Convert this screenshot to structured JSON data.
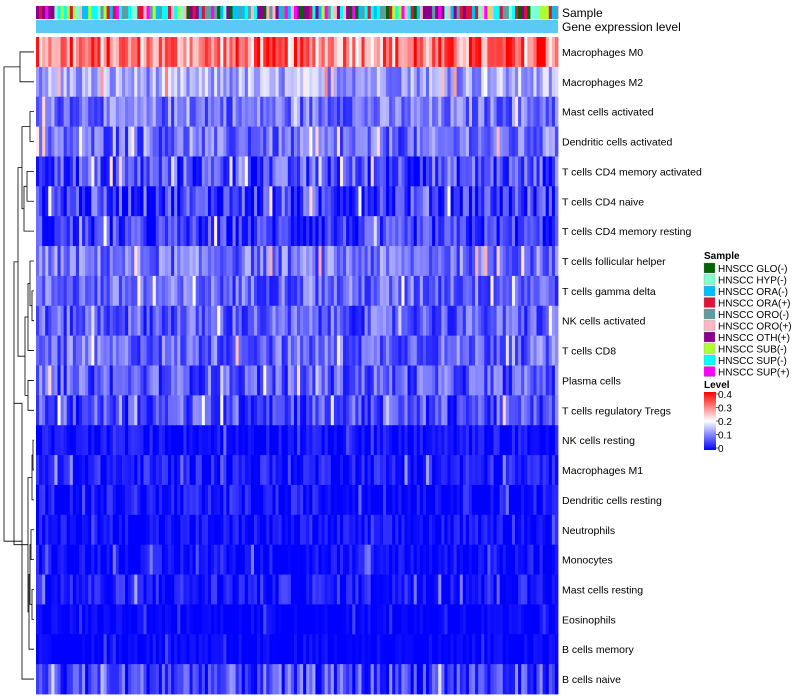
{
  "chart_data": {
    "type": "heatmap",
    "title": "",
    "annotation_labels": {
      "sample": "Sample",
      "gene_expression": "Gene expression level"
    },
    "rows": [
      {
        "name": "Macrophages M0",
        "mean": 0.3,
        "spread": 0.1
      },
      {
        "name": "Macrophages M2",
        "mean": 0.13,
        "spread": 0.06
      },
      {
        "name": "Mast cells activated",
        "mean": 0.09,
        "spread": 0.06
      },
      {
        "name": "Dendritic cells activated",
        "mean": 0.08,
        "spread": 0.06
      },
      {
        "name": "T cells CD4 memory activated",
        "mean": 0.06,
        "spread": 0.07
      },
      {
        "name": "T cells CD4 naive",
        "mean": 0.05,
        "spread": 0.07
      },
      {
        "name": "T cells CD4 memory resting",
        "mean": 0.04,
        "spread": 0.06
      },
      {
        "name": "T cells follicular helper",
        "mean": 0.09,
        "spread": 0.06
      },
      {
        "name": "T cells gamma delta",
        "mean": 0.08,
        "spread": 0.06
      },
      {
        "name": "NK cells activated",
        "mean": 0.07,
        "spread": 0.06
      },
      {
        "name": "T cells CD8",
        "mean": 0.08,
        "spread": 0.06
      },
      {
        "name": "Plasma cells",
        "mean": 0.07,
        "spread": 0.06
      },
      {
        "name": "T cells regulatory  Tregs",
        "mean": 0.06,
        "spread": 0.06
      },
      {
        "name": "NK cells resting",
        "mean": 0.01,
        "spread": 0.03
      },
      {
        "name": "Macrophages M1",
        "mean": 0.02,
        "spread": 0.04
      },
      {
        "name": "Dendritic cells resting",
        "mean": 0.01,
        "spread": 0.04
      },
      {
        "name": "Neutrophils",
        "mean": 0.01,
        "spread": 0.03
      },
      {
        "name": "Monocytes",
        "mean": 0.01,
        "spread": 0.03
      },
      {
        "name": "Mast cells resting",
        "mean": 0.02,
        "spread": 0.04
      },
      {
        "name": "Eosinophils",
        "mean": 0.0,
        "spread": 0.02
      },
      {
        "name": "B cells memory",
        "mean": 0.0,
        "spread": 0.02
      },
      {
        "name": "B cells naive",
        "mean": 0.05,
        "spread": 0.07
      }
    ],
    "n_samples": 170,
    "sample_groups": [
      {
        "name": "HNSCC GLO(-)",
        "color": "#006400"
      },
      {
        "name": "HNSCC HYP(-)",
        "color": "#7FFFD4"
      },
      {
        "name": "HNSCC ORA(-)",
        "color": "#00BFFF"
      },
      {
        "name": "HNSCC ORA(+)",
        "color": "#DC143C"
      },
      {
        "name": "HNSCC ORO(-)",
        "color": "#5F9EA0"
      },
      {
        "name": "HNSCC ORO(+)",
        "color": "#FFB6C1"
      },
      {
        "name": "HNSCC OTH(+)",
        "color": "#8B008B"
      },
      {
        "name": "HNSCC SUB(-)",
        "color": "#ADFF2F"
      },
      {
        "name": "HNSCC SUP(-)",
        "color": "#00FFFF"
      },
      {
        "name": "HNSCC SUP(+)",
        "color": "#FF00FF"
      }
    ],
    "sample_legend_title": "Sample",
    "level_legend_title": "Level",
    "level_ticks": [
      "0.4",
      "0.3",
      "0.2",
      "0.1",
      "0"
    ],
    "level_range": [
      0,
      0.4
    ],
    "color_scale": {
      "low": "#0000FF",
      "mid": "#FFFFFF",
      "high": "#FF0000",
      "gene_bar": "#5BC8F5"
    }
  }
}
